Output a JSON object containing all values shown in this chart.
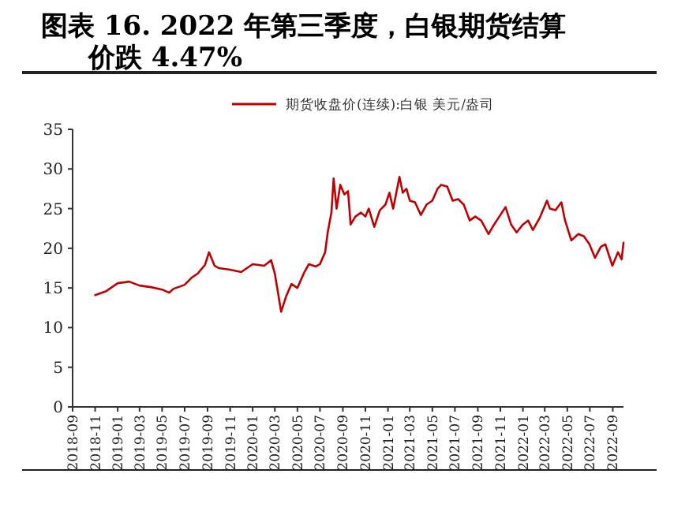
{
  "chart_data": {
    "type": "line",
    "title": "图表 16. 2022 年第三季度，白银期货结算价跌 4.47%",
    "x": [
      "2018-11-01",
      "2018-12-01",
      "2019-01-01",
      "2019-02-01",
      "2019-03-01",
      "2019-04-01",
      "2019-05-01",
      "2019-05-20",
      "2019-06-01",
      "2019-06-20",
      "2019-07-01",
      "2019-07-20",
      "2019-08-05",
      "2019-08-25",
      "2019-09-05",
      "2019-09-20",
      "2019-10-01",
      "2019-11-01",
      "2019-12-01",
      "2020-01-01",
      "2020-02-01",
      "2020-02-20",
      "2020-03-01",
      "2020-03-18",
      "2020-04-01",
      "2020-04-15",
      "2020-05-01",
      "2020-05-20",
      "2020-06-01",
      "2020-06-20",
      "2020-07-01",
      "2020-07-15",
      "2020-07-22",
      "2020-08-01",
      "2020-08-07",
      "2020-08-15",
      "2020-08-25",
      "2020-09-05",
      "2020-09-15",
      "2020-09-22",
      "2020-10-05",
      "2020-10-20",
      "2020-11-01",
      "2020-11-10",
      "2020-11-25",
      "2020-12-10",
      "2020-12-25",
      "2021-01-05",
      "2021-01-15",
      "2021-02-01",
      "2021-02-10",
      "2021-02-20",
      "2021-03-01",
      "2021-03-15",
      "2021-03-31",
      "2021-04-15",
      "2021-05-01",
      "2021-05-15",
      "2021-05-25",
      "2021-06-10",
      "2021-06-25",
      "2021-07-10",
      "2021-07-25",
      "2021-08-10",
      "2021-08-25",
      "2021-09-10",
      "2021-09-30",
      "2021-10-15",
      "2021-11-01",
      "2021-11-15",
      "2021-11-30",
      "2021-12-15",
      "2022-01-01",
      "2022-01-15",
      "2022-01-28",
      "2022-02-15",
      "2022-03-07",
      "2022-03-15",
      "2022-03-30",
      "2022-04-15",
      "2022-04-25",
      "2022-05-12",
      "2022-05-31",
      "2022-06-15",
      "2022-06-30",
      "2022-07-15",
      "2022-07-31",
      "2022-08-12",
      "2022-08-31",
      "2022-09-15",
      "2022-09-25",
      "2022-09-30"
    ],
    "series": [
      {
        "name": "期货收盘价(连续):白银 美元/盎司",
        "color": "#c00000",
        "values": [
          14.1,
          14.6,
          15.6,
          15.8,
          15.3,
          15.1,
          14.8,
          14.4,
          14.9,
          15.2,
          15.4,
          16.3,
          16.8,
          17.9,
          19.5,
          17.8,
          17.5,
          17.3,
          17.0,
          18.0,
          17.8,
          18.5,
          16.8,
          12.0,
          14.0,
          15.5,
          15.0,
          17.0,
          18.0,
          17.7,
          18.0,
          19.5,
          22.0,
          24.5,
          28.8,
          25.0,
          28.0,
          26.8,
          27.2,
          23.0,
          24.0,
          24.5,
          24.0,
          25.0,
          22.7,
          24.8,
          25.5,
          27.0,
          25.0,
          29.0,
          27.0,
          27.5,
          26.0,
          25.8,
          24.2,
          25.5,
          26.0,
          27.5,
          28.0,
          27.8,
          26.0,
          26.2,
          25.5,
          23.5,
          24.0,
          23.5,
          21.8,
          23.0,
          24.2,
          25.2,
          23.0,
          22.0,
          23.0,
          23.5,
          22.3,
          23.8,
          26.0,
          25.0,
          24.8,
          25.8,
          23.5,
          21.0,
          21.8,
          21.5,
          20.5,
          18.8,
          20.2,
          20.5,
          17.8,
          19.5,
          18.6,
          20.7
        ]
      }
    ],
    "xlim": [
      "2018-09-01",
      "2022-09-30"
    ],
    "xticks": [
      "2018-09",
      "2018-11",
      "2019-01",
      "2019-03",
      "2019-05",
      "2019-07",
      "2019-09",
      "2019-11",
      "2020-01",
      "2020-03",
      "2020-05",
      "2020-07",
      "2020-09",
      "2020-11",
      "2021-01",
      "2021-03",
      "2021-05",
      "2021-07",
      "2021-09",
      "2021-11",
      "2022-01",
      "2022-03",
      "2022-05",
      "2022-07",
      "2022-09"
    ],
    "ylim": [
      0,
      35
    ],
    "yticks": [
      0,
      5,
      10,
      15,
      20,
      25,
      30,
      35
    ],
    "legend": "top",
    "grid": false,
    "marker": "none",
    "line_style": "solid"
  }
}
